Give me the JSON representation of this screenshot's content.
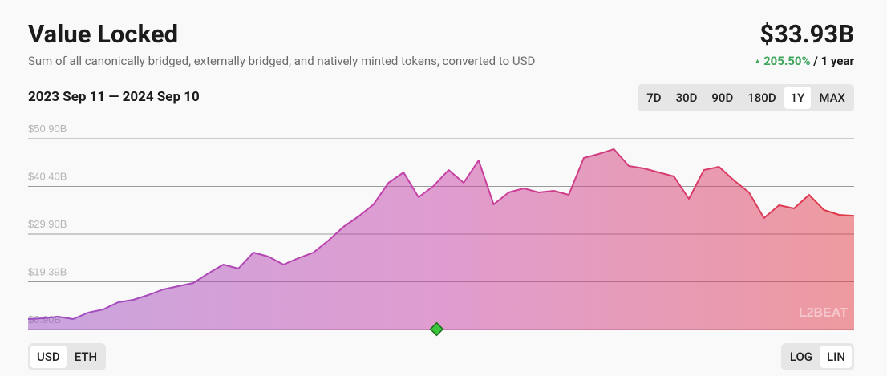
{
  "header": {
    "title": "Value Locked",
    "subtitle": "Sum of all canonically bridged, externally bridged, and natively minted tokens, converted to USD",
    "value": "$33.93B",
    "change": "205.50%",
    "period": "/ 1 year"
  },
  "date_range": "2023 Sep 11 — 2024 Sep 10",
  "range_buttons": [
    "7D",
    "30D",
    "90D",
    "180D",
    "1Y",
    "MAX"
  ],
  "range_selected": 4,
  "currency_buttons": [
    "USD",
    "ETH"
  ],
  "currency_selected": 0,
  "scale_buttons": [
    "LOG",
    "LIN"
  ],
  "scale_selected": 1,
  "watermark": "L2BEAT",
  "chart_data": {
    "type": "area",
    "values": [
      11.19,
      11.37,
      11.72,
      11.19,
      12.61,
      13.31,
      14.9,
      15.43,
      16.49,
      17.72,
      18.43,
      19.13,
      21.25,
      23.19,
      22.31,
      25.84,
      24.96,
      23.19,
      24.6,
      25.84,
      28.49,
      31.49,
      33.78,
      36.43,
      41.19,
      43.49,
      38.02,
      40.49,
      44.02,
      41.19,
      46.13,
      36.43,
      39.08,
      39.96,
      39.08,
      39.43,
      38.55,
      46.66,
      47.54,
      48.6,
      44.9,
      44.37,
      43.49,
      42.6,
      37.66,
      44.02,
      44.72,
      41.72,
      39.08,
      33.43,
      36.25,
      35.55,
      38.55,
      35.19,
      34.13,
      33.93
    ],
    "ylim": [
      8.9,
      50.9
    ],
    "yticks": [
      {
        "value": 8.9,
        "label": "$8.90B"
      },
      {
        "value": 19.39,
        "label": "$19.39B"
      },
      {
        "value": 29.9,
        "label": "$29.90B"
      },
      {
        "value": 40.4,
        "label": "$40.40B"
      },
      {
        "value": 50.9,
        "label": "$50.90B"
      }
    ],
    "grid": true,
    "colors": [
      "#9b4fc4",
      "#c640a6",
      "#e23a45"
    ]
  }
}
